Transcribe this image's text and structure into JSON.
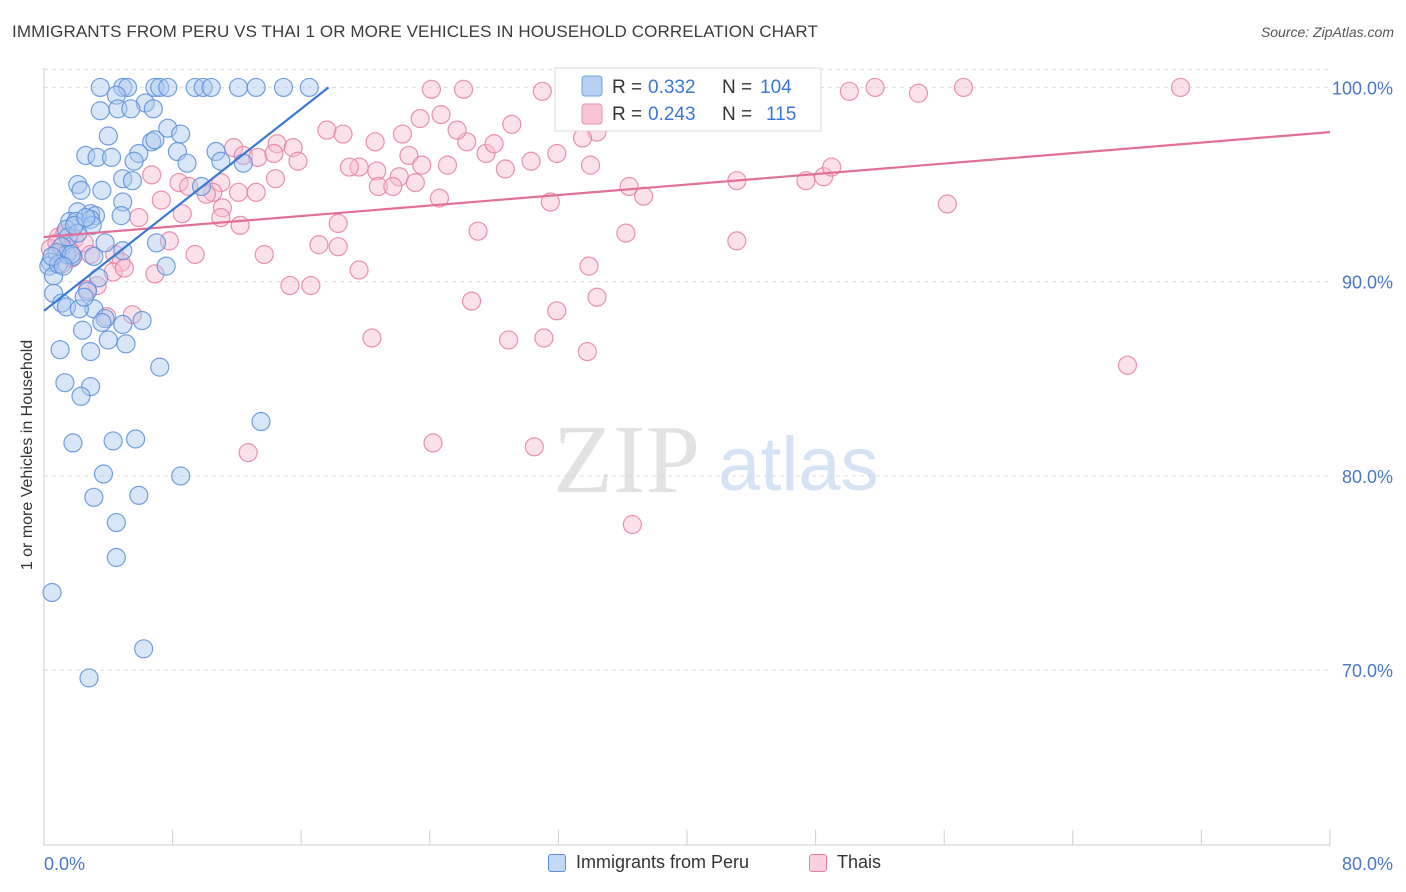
{
  "title": "IMMIGRANTS FROM PERU VS THAI 1 OR MORE VEHICLES IN HOUSEHOLD CORRELATION CHART",
  "source": "Source: ZipAtlas.com",
  "watermark": {
    "zip": "ZIP",
    "atlas": "atlas"
  },
  "colors": {
    "blue": "#5b8fd9",
    "blue_fill": "#aac8f0",
    "pink": "#e67fa3",
    "pink_fill": "#f6bcd0",
    "blue_line": "#3a78d4",
    "pink_line": "#e0709a",
    "tick": "#4a78c9",
    "grid": "#dcdcdc"
  },
  "legend_box": {
    "rows": [
      {
        "r_label": "R =",
        "r_value": "0.332",
        "n_label": "N =",
        "n_value": "104"
      },
      {
        "r_label": "R =",
        "r_value": "0.243",
        "n_label": "N =",
        "n_value": "115"
      }
    ]
  },
  "bottom_legend": [
    "Immigrants from Peru",
    "Thais"
  ],
  "chart_data": {
    "type": "scatter",
    "title": "IMMIGRANTS FROM PERU VS THAI 1 OR MORE VEHICLES IN HOUSEHOLD CORRELATION CHART",
    "xlabel": "",
    "ylabel": "1 or more Vehicles in Household",
    "xlim": [
      0,
      80
    ],
    "ylim": [
      61,
      101
    ],
    "x_tick_labels": [
      "0.0%",
      "80.0%"
    ],
    "y_ticks": [
      70,
      80,
      90,
      100
    ],
    "y_tick_labels": [
      "70.0%",
      "80.0%",
      "90.0%",
      "100.0%"
    ],
    "grid": true,
    "series": [
      {
        "name": "Immigrants from Peru",
        "R": 0.332,
        "N": 104,
        "trend": {
          "x": [
            0,
            17.7
          ],
          "y": [
            88.5,
            100.0
          ]
        },
        "points": [
          [
            3.5,
            100
          ],
          [
            4.9,
            100
          ],
          [
            5.2,
            100
          ],
          [
            6.9,
            100
          ],
          [
            7.2,
            100
          ],
          [
            7.7,
            100
          ],
          [
            9.4,
            100
          ],
          [
            9.9,
            100
          ],
          [
            10.4,
            100
          ],
          [
            12.1,
            100
          ],
          [
            13.2,
            100
          ],
          [
            14.9,
            100
          ],
          [
            16.5,
            100
          ],
          [
            4.5,
            99.6
          ],
          [
            6.3,
            99.2
          ],
          [
            3.5,
            98.8
          ],
          [
            4.6,
            98.9
          ],
          [
            5.4,
            98.9
          ],
          [
            6.8,
            98.9
          ],
          [
            7.7,
            97.9
          ],
          [
            4.0,
            97.5
          ],
          [
            6.7,
            97.2
          ],
          [
            6.9,
            97.3
          ],
          [
            2.6,
            96.5
          ],
          [
            3.3,
            96.4
          ],
          [
            4.2,
            96.4
          ],
          [
            5.9,
            96.6
          ],
          [
            8.3,
            96.7
          ],
          [
            10.7,
            96.7
          ],
          [
            8.9,
            96.1
          ],
          [
            12.4,
            96.1
          ],
          [
            2.1,
            95.0
          ],
          [
            4.9,
            95.3
          ],
          [
            5.5,
            95.2
          ],
          [
            2.3,
            94.7
          ],
          [
            3.6,
            94.7
          ],
          [
            4.9,
            94.1
          ],
          [
            2.1,
            93.6
          ],
          [
            2.9,
            93.5
          ],
          [
            3.2,
            93.4
          ],
          [
            1.6,
            93.1
          ],
          [
            2.0,
            93.1
          ],
          [
            2.9,
            93.2
          ],
          [
            3.0,
            92.9
          ],
          [
            1.4,
            92.7
          ],
          [
            1.5,
            92.3
          ],
          [
            2.1,
            92.5
          ],
          [
            1.1,
            91.8
          ],
          [
            1.4,
            91.4
          ],
          [
            1.8,
            91.3
          ],
          [
            3.8,
            92.0
          ],
          [
            4.9,
            91.6
          ],
          [
            7.0,
            92.0
          ],
          [
            0.8,
            91.5
          ],
          [
            0.4,
            91.0
          ],
          [
            0.3,
            90.8
          ],
          [
            0.6,
            90.3
          ],
          [
            1.7,
            91.4
          ],
          [
            0.9,
            90.9
          ],
          [
            3.4,
            90.2
          ],
          [
            7.6,
            90.8
          ],
          [
            2.7,
            89.5
          ],
          [
            0.6,
            89.4
          ],
          [
            1.1,
            88.9
          ],
          [
            1.4,
            88.7
          ],
          [
            3.1,
            88.6
          ],
          [
            2.2,
            88.6
          ],
          [
            3.8,
            88.1
          ],
          [
            3.6,
            87.9
          ],
          [
            4.9,
            87.8
          ],
          [
            2.4,
            87.5
          ],
          [
            4.0,
            87.0
          ],
          [
            5.1,
            86.8
          ],
          [
            1.0,
            86.5
          ],
          [
            2.9,
            86.4
          ],
          [
            7.2,
            85.6
          ],
          [
            1.3,
            84.8
          ],
          [
            2.9,
            84.6
          ],
          [
            2.3,
            84.1
          ],
          [
            13.5,
            82.8
          ],
          [
            1.8,
            81.7
          ],
          [
            4.3,
            81.8
          ],
          [
            5.7,
            81.9
          ],
          [
            3.7,
            80.1
          ],
          [
            8.5,
            80.0
          ],
          [
            3.1,
            78.9
          ],
          [
            5.9,
            79.0
          ],
          [
            4.5,
            77.6
          ],
          [
            4.5,
            75.8
          ],
          [
            0.5,
            74.0
          ],
          [
            6.2,
            71.1
          ],
          [
            2.8,
            69.6
          ],
          [
            9.8,
            94.9
          ],
          [
            11.0,
            96.2
          ],
          [
            8.5,
            97.6
          ],
          [
            5.6,
            96.2
          ],
          [
            3.1,
            91.3
          ],
          [
            1.9,
            92.9
          ],
          [
            2.6,
            93.3
          ],
          [
            4.8,
            93.4
          ],
          [
            0.5,
            91.3
          ],
          [
            1.2,
            90.8
          ],
          [
            2.5,
            89.2
          ],
          [
            6.1,
            88.0
          ]
        ]
      },
      {
        "name": "Thais",
        "R": 0.243,
        "N": 115,
        "trend": {
          "x": [
            0,
            80
          ],
          "y": [
            92.3,
            97.7
          ]
        },
        "points": [
          [
            24.1,
            99.9
          ],
          [
            26.1,
            99.9
          ],
          [
            31.0,
            99.8
          ],
          [
            34.1,
            99.8
          ],
          [
            38.6,
            100
          ],
          [
            40.5,
            99.9
          ],
          [
            41.4,
            99.9
          ],
          [
            50.1,
            99.8
          ],
          [
            51.7,
            100
          ],
          [
            57.2,
            100
          ],
          [
            70.7,
            100
          ],
          [
            54.4,
            99.7
          ],
          [
            24.7,
            98.6
          ],
          [
            23.4,
            98.4
          ],
          [
            29.1,
            98.1
          ],
          [
            17.6,
            97.8
          ],
          [
            18.6,
            97.6
          ],
          [
            22.3,
            97.6
          ],
          [
            34.4,
            97.7
          ],
          [
            20.6,
            97.2
          ],
          [
            26.3,
            97.2
          ],
          [
            14.5,
            97.1
          ],
          [
            15.5,
            96.9
          ],
          [
            11.8,
            96.9
          ],
          [
            12.4,
            96.5
          ],
          [
            13.3,
            96.4
          ],
          [
            15.8,
            96.2
          ],
          [
            14.3,
            96.6
          ],
          [
            22.7,
            96.5
          ],
          [
            27.5,
            96.6
          ],
          [
            30.3,
            96.2
          ],
          [
            31.9,
            96.6
          ],
          [
            19.6,
            95.9
          ],
          [
            20.7,
            95.7
          ],
          [
            23.5,
            96.0
          ],
          [
            25.1,
            96.0
          ],
          [
            34.0,
            96.0
          ],
          [
            28.7,
            95.8
          ],
          [
            6.7,
            95.5
          ],
          [
            14.4,
            95.3
          ],
          [
            22.1,
            95.4
          ],
          [
            23.1,
            95.1
          ],
          [
            20.8,
            94.9
          ],
          [
            21.7,
            94.9
          ],
          [
            36.4,
            94.9
          ],
          [
            37.3,
            94.4
          ],
          [
            11.0,
            95.1
          ],
          [
            8.4,
            95.1
          ],
          [
            9.0,
            94.9
          ],
          [
            12.1,
            94.6
          ],
          [
            13.2,
            94.6
          ],
          [
            10.5,
            94.6
          ],
          [
            10.1,
            94.5
          ],
          [
            7.3,
            94.2
          ],
          [
            11.1,
            93.8
          ],
          [
            24.6,
            94.3
          ],
          [
            31.5,
            94.1
          ],
          [
            43.1,
            95.2
          ],
          [
            47.4,
            95.2
          ],
          [
            48.5,
            95.4
          ],
          [
            49.0,
            95.9
          ],
          [
            56.2,
            94.0
          ],
          [
            8.6,
            93.5
          ],
          [
            5.9,
            93.3
          ],
          [
            11.0,
            93.3
          ],
          [
            12.2,
            92.9
          ],
          [
            18.3,
            93.0
          ],
          [
            27.0,
            92.6
          ],
          [
            36.2,
            92.5
          ],
          [
            43.1,
            92.1
          ],
          [
            7.8,
            92.1
          ],
          [
            1.9,
            92.2
          ],
          [
            0.9,
            92.3
          ],
          [
            1.3,
            92.5
          ],
          [
            2.5,
            92.0
          ],
          [
            2.9,
            91.4
          ],
          [
            1.7,
            91.2
          ],
          [
            1.1,
            90.9
          ],
          [
            0.4,
            91.7
          ],
          [
            4.4,
            91.4
          ],
          [
            9.4,
            91.4
          ],
          [
            13.7,
            91.4
          ],
          [
            17.1,
            91.9
          ],
          [
            18.3,
            91.8
          ],
          [
            4.8,
            91.0
          ],
          [
            4.3,
            90.5
          ],
          [
            6.9,
            90.4
          ],
          [
            19.6,
            90.6
          ],
          [
            33.9,
            90.8
          ],
          [
            15.3,
            89.8
          ],
          [
            16.6,
            89.8
          ],
          [
            26.6,
            89.0
          ],
          [
            31.9,
            88.5
          ],
          [
            34.4,
            89.2
          ],
          [
            3.3,
            89.8
          ],
          [
            3.9,
            88.2
          ],
          [
            5.5,
            88.3
          ],
          [
            20.4,
            87.1
          ],
          [
            28.9,
            87.0
          ],
          [
            31.1,
            87.1
          ],
          [
            33.8,
            86.4
          ],
          [
            67.4,
            85.7
          ],
          [
            12.7,
            81.2
          ],
          [
            24.2,
            81.7
          ],
          [
            30.5,
            81.5
          ],
          [
            36.6,
            77.5
          ],
          [
            2.7,
            89.6
          ],
          [
            1.6,
            91.6
          ],
          [
            0.8,
            92.0
          ],
          [
            5.0,
            90.7
          ],
          [
            25.7,
            97.8
          ],
          [
            33.5,
            97.4
          ],
          [
            41.1,
            99.9
          ],
          [
            28.0,
            97.1
          ],
          [
            19.0,
            95.9
          ]
        ]
      }
    ]
  }
}
